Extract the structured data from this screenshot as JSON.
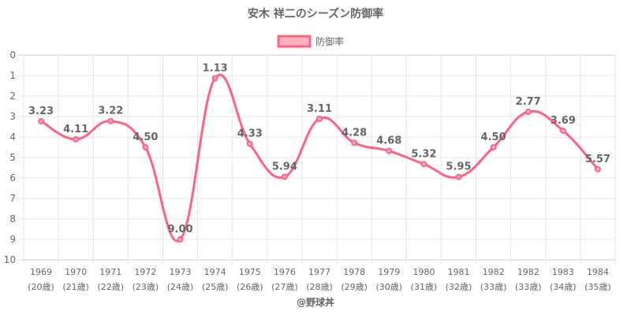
{
  "chart_data": {
    "type": "line",
    "title": "安木 祥二のシーズン防御率",
    "legend": {
      "label": "防御率",
      "placement": "top"
    },
    "categories": [
      "1969",
      "1970",
      "1971",
      "1972",
      "1973",
      "1974",
      "1975",
      "1976",
      "1977",
      "1978",
      "1979",
      "1980",
      "1981",
      "1982",
      "1982",
      "1983",
      "1984"
    ],
    "sublabels": [
      "(20歳)",
      "(21歳)",
      "(22歳)",
      "(23歳)",
      "(24歳)",
      "(25歳)",
      "(26歳)",
      "(27歳)",
      "(28歳)",
      "(29歳)",
      "(30歳)",
      "(31歳)",
      "(32歳)",
      "(33歳)",
      "(33歳)",
      "(34歳)",
      "(35歳)"
    ],
    "series": [
      {
        "name": "防御率",
        "values": [
          3.23,
          4.11,
          3.22,
          4.5,
          9.0,
          1.13,
          4.33,
          5.94,
          3.11,
          4.28,
          4.68,
          5.32,
          5.95,
          4.5,
          2.77,
          3.69,
          5.57
        ]
      }
    ],
    "data_labels": [
      "3.23",
      "4.11",
      "3.22",
      "4.50",
      "9.00",
      "1.13",
      "4.33",
      "5.94",
      "3.11",
      "4.28",
      "4.68",
      "5.32",
      "5.95",
      "4.50",
      "2.77",
      "3.69",
      "5.57"
    ],
    "ylim": [
      0,
      10
    ],
    "y_reversed": true,
    "yticks": [
      "0",
      "1",
      "2",
      "3",
      "4",
      "5",
      "6",
      "7",
      "8",
      "9",
      "10"
    ],
    "grid": true,
    "color": "#ff6384",
    "fill": "#ffb1c1"
  },
  "footer": "@野球丼"
}
